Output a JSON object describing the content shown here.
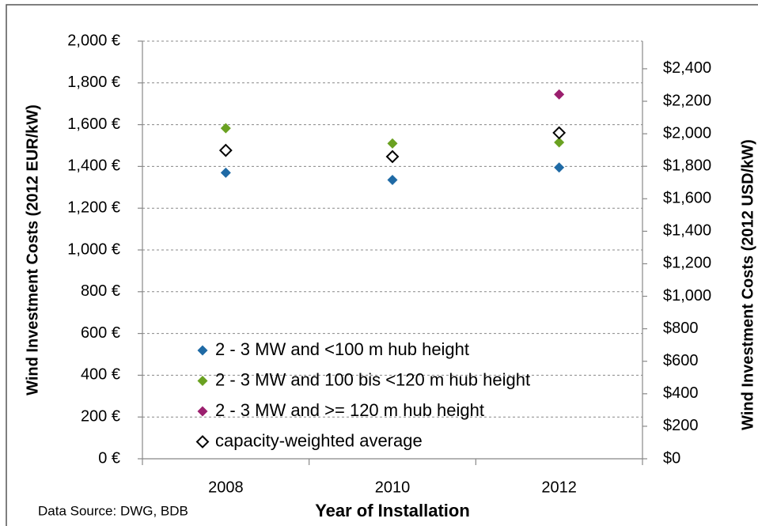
{
  "chart_data": {
    "type": "scatter",
    "categories": [
      "2008",
      "2010",
      "2012"
    ],
    "xlabel": "Year of Installation",
    "ylabel": "Wind Investment Costs (2012 EUR/kW)",
    "y2label": "Wind Investment Costs (2012 USD/kW)",
    "source": "Data Source: DWG, BDB",
    "ylim": [
      0,
      2000
    ],
    "yticks": [
      {
        "value": 0,
        "label": "0 €"
      },
      {
        "value": 200,
        "label": "200 €"
      },
      {
        "value": 400,
        "label": "400 €"
      },
      {
        "value": 600,
        "label": "600 €"
      },
      {
        "value": 800,
        "label": "800 €"
      },
      {
        "value": 1000,
        "label": "1,000 €"
      },
      {
        "value": 1200,
        "label": "1,200 €"
      },
      {
        "value": 1400,
        "label": "1,400 €"
      },
      {
        "value": 1600,
        "label": "1,600 €"
      },
      {
        "value": 1800,
        "label": "1,800 €"
      },
      {
        "value": 2000,
        "label": "2,000 €"
      }
    ],
    "y2lim": [
      0,
      2570
    ],
    "y2ticks": [
      {
        "value": 0,
        "label": "$0"
      },
      {
        "value": 200,
        "label": "$200"
      },
      {
        "value": 400,
        "label": "$400"
      },
      {
        "value": 600,
        "label": "$600"
      },
      {
        "value": 800,
        "label": "$800"
      },
      {
        "value": 1000,
        "label": "$1,000"
      },
      {
        "value": 1200,
        "label": "$1,200"
      },
      {
        "value": 1400,
        "label": "$1,400"
      },
      {
        "value": 1600,
        "label": "$1,600"
      },
      {
        "value": 1800,
        "label": "$1,800"
      },
      {
        "value": 2000,
        "label": "$2,000"
      },
      {
        "value": 2200,
        "label": "$2,200"
      },
      {
        "value": 2400,
        "label": "$2,400"
      }
    ],
    "grid": true,
    "legend": "lower left",
    "series": [
      {
        "name": "2 - 3 MW and <100 m hub height",
        "color": "#1f6aa5",
        "values": [
          1370,
          1335,
          1395
        ]
      },
      {
        "name": "2 - 3 MW and 100 bis <120 m hub height",
        "color": "#6aa121",
        "values": [
          1583,
          1510,
          1515
        ]
      },
      {
        "name": "2 - 3 MW and >= 120 m hub height",
        "color": "#9b1f6e",
        "values": [
          null,
          null,
          1745
        ]
      },
      {
        "name": "capacity-weighted average",
        "color": "#000000",
        "hollow": true,
        "values": [
          1477,
          1447,
          1561
        ]
      }
    ]
  }
}
